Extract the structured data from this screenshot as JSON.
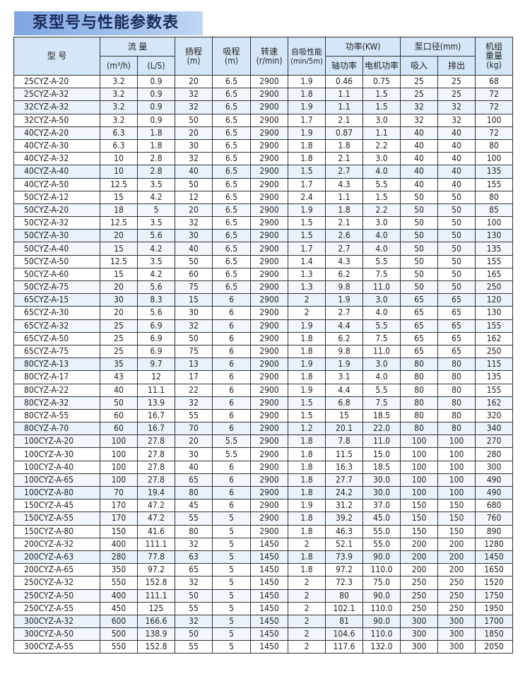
{
  "title": "泵型号与性能参数表",
  "header": {
    "model": "型 号",
    "flow": "流 量",
    "flow_m3h": "(m³/h)",
    "flow_ls": "(L/S)",
    "head": "扬程",
    "head_unit": "(m)",
    "suction": "吸程",
    "suction_unit": "(m)",
    "speed": "转速",
    "speed_unit": "(r/min)",
    "selfprime": "自吸性能",
    "selfprime_unit": "(min/5m)",
    "power": "功率(KW)",
    "shaft_power": "轴功率",
    "motor_power": "电机功率",
    "bore": "泵口径(mm)",
    "inlet": "吸入",
    "outlet": "排出",
    "weight": "机组重量",
    "weight_unit": "(kg)"
  },
  "rows": [
    [
      "25CYZ-A-20",
      "3.2",
      "0.9",
      "20",
      "6.5",
      "2900",
      "1.9",
      "0.46",
      "0.75",
      "25",
      "25",
      "68"
    ],
    [
      "25CYZ-A-32",
      "3.2",
      "0.9",
      "32",
      "6.5",
      "2900",
      "1.8",
      "1.1",
      "1.5",
      "25",
      "25",
      "72"
    ],
    [
      "32CYZ-A-32",
      "3.2",
      "0.9",
      "32",
      "6.5",
      "2900",
      "1.9",
      "1.1",
      "1.5",
      "32",
      "32",
      "72"
    ],
    [
      "32CYZ-A-50",
      "3.2",
      "0.9",
      "50",
      "6.5",
      "2900",
      "1.7",
      "2.1",
      "3.0",
      "32",
      "32",
      "100"
    ],
    [
      "40CYZ-A-20",
      "6.3",
      "1.8",
      "20",
      "6.5",
      "2900",
      "1.9",
      "0.87",
      "1.1",
      "40",
      "40",
      "72"
    ],
    [
      "40CYZ-A-30",
      "6.3",
      "1.8",
      "30",
      "6.5",
      "2900",
      "1.8",
      "1.8",
      "2.2",
      "40",
      "40",
      "80"
    ],
    [
      "40CYZ-A-32",
      "10",
      "2.8",
      "32",
      "6.5",
      "2900",
      "1.8",
      "2.1",
      "3.0",
      "40",
      "40",
      "100"
    ],
    [
      "40CYZ-A-40",
      "10",
      "2.8",
      "40",
      "6.5",
      "2900",
      "1.5",
      "2.7",
      "4.0",
      "40",
      "40",
      "135"
    ],
    [
      "40CYZ-A-50",
      "12.5",
      "3.5",
      "50",
      "6.5",
      "2900",
      "1.7",
      "4.3",
      "5.5",
      "40",
      "40",
      "155"
    ],
    [
      "50CYZ-A-12",
      "15",
      "4.2",
      "12",
      "6.5",
      "2900",
      "2.4",
      "1.1",
      "1.5",
      "50",
      "50",
      "80"
    ],
    [
      "50CYZ-A-20",
      "18",
      "5",
      "20",
      "6.5",
      "2900",
      "1.9",
      "1.8",
      "2.2",
      "50",
      "50",
      "85"
    ],
    [
      "50CYZ-A-32",
      "12.5",
      "3.5",
      "32",
      "6.5",
      "2900",
      "1.5",
      "2.1",
      "3.0",
      "50",
      "50",
      "100"
    ],
    [
      "50CYZ-A-30",
      "20",
      "5.6",
      "30",
      "6.5",
      "2900",
      "1.5",
      "2.6",
      "4.0",
      "50",
      "50",
      "130"
    ],
    [
      "50CYZ-A-40",
      "15",
      "4.2",
      "40",
      "6.5",
      "2900",
      "1.7",
      "2.7",
      "4.0",
      "50",
      "50",
      "135"
    ],
    [
      "50CYZ-A-50",
      "12.5",
      "3.5",
      "50",
      "6.5",
      "2900",
      "1.4",
      "4.3",
      "5.5",
      "50",
      "50",
      "155"
    ],
    [
      "50CYZ-A-60",
      "15",
      "4.2",
      "60",
      "6.5",
      "2900",
      "1.3",
      "6.2",
      "7.5",
      "50",
      "50",
      "165"
    ],
    [
      "50CYZ-A-75",
      "20",
      "5.6",
      "75",
      "6.5",
      "2900",
      "1.3",
      "9.8",
      "11.0",
      "50",
      "50",
      "250"
    ],
    [
      "65CYZ-A-15",
      "30",
      "8.3",
      "15",
      "6",
      "2900",
      "2",
      "1.9",
      "3.0",
      "65",
      "65",
      "120"
    ],
    [
      "65CYZ-A-30",
      "20",
      "5.6",
      "30",
      "6",
      "2900",
      "2",
      "2.7",
      "4.0",
      "65",
      "65",
      "130"
    ],
    [
      "65CYZ-A-32",
      "25",
      "6.9",
      "32",
      "6",
      "2900",
      "1.9",
      "4.4",
      "5.5",
      "65",
      "65",
      "155"
    ],
    [
      "65CYZ-A-50",
      "25",
      "6.9",
      "50",
      "6",
      "2900",
      "1.8",
      "6.2",
      "7.5",
      "65",
      "65",
      "162"
    ],
    [
      "65CYZ-A-75",
      "25",
      "6.9",
      "75",
      "6",
      "2900",
      "1.8",
      "9.8",
      "11.0",
      "65",
      "65",
      "250"
    ],
    [
      "80CYZ-A-13",
      "35",
      "9.7",
      "13",
      "6",
      "2900",
      "1.9",
      "1.9",
      "3.0",
      "80",
      "80",
      "115"
    ],
    [
      "80CYZ-A-17",
      "43",
      "12",
      "17",
      "6",
      "2900",
      "1.8",
      "3.1",
      "4.0",
      "80",
      "80",
      "135"
    ],
    [
      "80CYZ-A-22",
      "40",
      "11.1",
      "22",
      "6",
      "2900",
      "1.9",
      "4.4",
      "5.5",
      "80",
      "80",
      "155"
    ],
    [
      "80CYZ-A-32",
      "50",
      "13.9",
      "32",
      "6",
      "2900",
      "1.5",
      "6.8",
      "7.5",
      "80",
      "80",
      "162"
    ],
    [
      "80CYZ-A-55",
      "60",
      "16.7",
      "55",
      "6",
      "2900",
      "1.5",
      "15",
      "18.5",
      "80",
      "80",
      "320"
    ],
    [
      "80CYZ-A-70",
      "60",
      "16.7",
      "70",
      "6",
      "2900",
      "1.2",
      "20.1",
      "22.0",
      "80",
      "80",
      "340"
    ],
    [
      "100CYZ-A-20",
      "100",
      "27.8",
      "20",
      "5.5",
      "2900",
      "1.8",
      "7.8",
      "11.0",
      "100",
      "100",
      "270"
    ],
    [
      "100CYZ-A-30",
      "100",
      "27.8",
      "30",
      "5.5",
      "2900",
      "1.8",
      "11.5",
      "15.0",
      "100",
      "100",
      "280"
    ],
    [
      "100CYZ-A-40",
      "100",
      "27.8",
      "40",
      "6",
      "2900",
      "1.8",
      "16.3",
      "18.5",
      "100",
      "100",
      "300"
    ],
    [
      "100CYZ-A-65",
      "100",
      "27.8",
      "65",
      "6",
      "2900",
      "1.8",
      "27.7",
      "30.0",
      "100",
      "100",
      "490"
    ],
    [
      "100CYZ-A-80",
      "70",
      "19.4",
      "80",
      "6",
      "2900",
      "1.8",
      "24.2",
      "30.0",
      "100",
      "100",
      "490"
    ],
    [
      "150CYZ-A-45",
      "170",
      "47.2",
      "45",
      "6",
      "2900",
      "1.9",
      "31.2",
      "37.0",
      "150",
      "150",
      "680"
    ],
    [
      "150CYZ-A-55",
      "170",
      "47.2",
      "55",
      "5",
      "2900",
      "1.8",
      "39.2",
      "45.0",
      "150",
      "150",
      "760"
    ],
    [
      "150CYZ-A-80",
      "150",
      "41.6",
      "80",
      "5",
      "2900",
      "1.8",
      "46.3",
      "55.0",
      "150",
      "150",
      "890"
    ],
    [
      "200CYZ-A-32",
      "400",
      "111.1",
      "32",
      "5",
      "1450",
      "2",
      "52.1",
      "55.0",
      "200",
      "200",
      "1280"
    ],
    [
      "200CYZ-A-63",
      "280",
      "77.8",
      "63",
      "5",
      "1450",
      "1.8",
      "73.9",
      "90.0",
      "200",
      "200",
      "1450"
    ],
    [
      "200CYZ-A-65",
      "350",
      "97.2",
      "65",
      "5",
      "1450",
      "1.8",
      "97.2",
      "110.0",
      "200",
      "200",
      "1650"
    ],
    [
      "250CYZ-A-32",
      "550",
      "152.8",
      "32",
      "5",
      "1450",
      "2",
      "72.3",
      "75.0",
      "250",
      "250",
      "1520"
    ],
    [
      "250CYZ-A-50",
      "400",
      "111.1",
      "50",
      "5",
      "1450",
      "2",
      "80",
      "90.0",
      "250",
      "250",
      "1750"
    ],
    [
      "250CYZ-A-55",
      "450",
      "125",
      "55",
      "5",
      "1450",
      "2",
      "102.1",
      "110.0",
      "250",
      "250",
      "1950"
    ],
    [
      "300CYZ-A-32",
      "600",
      "166.6",
      "32",
      "5",
      "1450",
      "2",
      "81",
      "90.0",
      "300",
      "300",
      "1700"
    ],
    [
      "300CYZ-A-50",
      "500",
      "138.9",
      "50",
      "5",
      "1450",
      "2",
      "104.6",
      "110.0",
      "300",
      "300",
      "1850"
    ],
    [
      "300CYZ-A-55",
      "550",
      "152.8",
      "55",
      "5",
      "1450",
      "2",
      "117.6",
      "132.0",
      "300",
      "300",
      "2050"
    ]
  ]
}
